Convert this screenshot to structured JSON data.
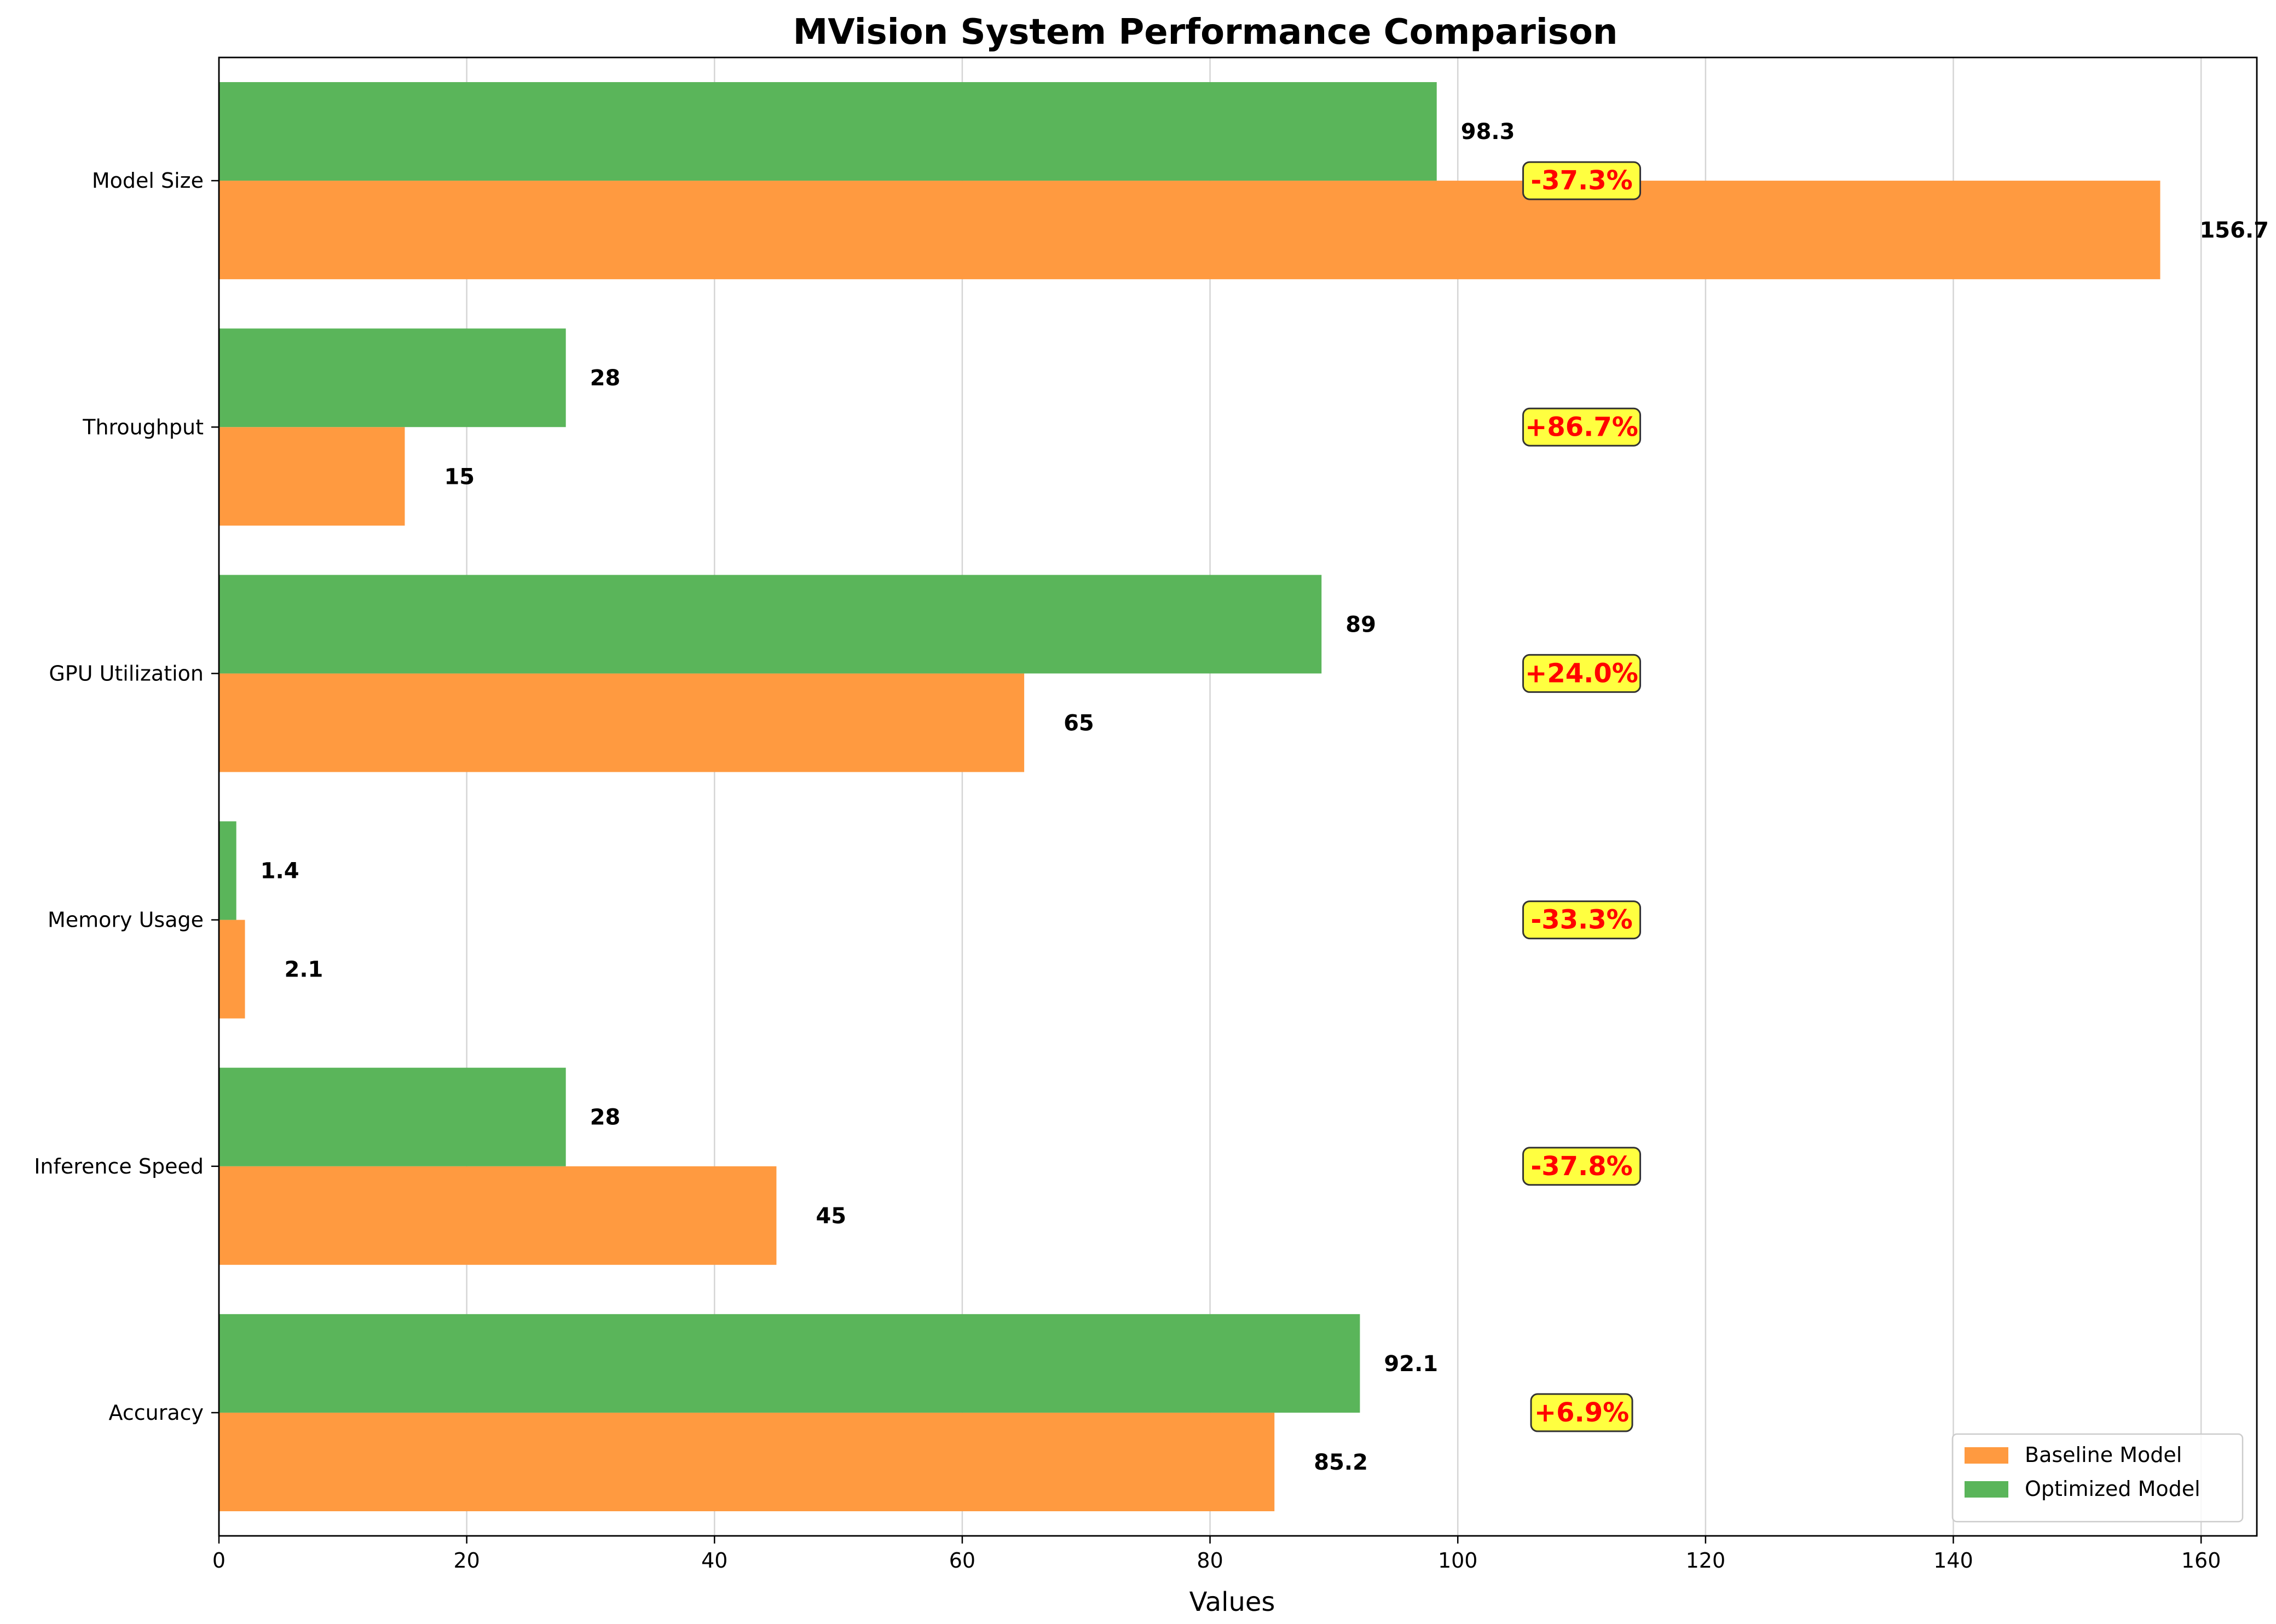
{
  "chart_data": {
    "type": "bar",
    "orientation": "horizontal",
    "title": "MVision System Performance Comparison",
    "xlabel": "Values",
    "ylabel": "",
    "xlim": [
      0,
      164.5
    ],
    "xticks": [
      0,
      20,
      40,
      60,
      80,
      100,
      120,
      140,
      160
    ],
    "grid": "x",
    "legend_position": "bottom-right",
    "categories": [
      "Accuracy",
      "Inference Speed",
      "Memory Usage",
      "GPU Utilization",
      "Throughput",
      "Model Size"
    ],
    "series": [
      {
        "name": "Baseline Model",
        "color": "#ff9a40",
        "values": [
          85.2,
          45,
          2.1,
          65,
          15,
          156.7
        ],
        "labels": [
          "85.2",
          "45",
          "2.1",
          "65",
          "15",
          "156.7"
        ]
      },
      {
        "name": "Optimized Model",
        "color": "#5ab55a",
        "values": [
          92.1,
          28,
          1.4,
          89,
          28,
          98.3
        ],
        "labels": [
          "92.1",
          "28",
          "1.4",
          "89",
          "28",
          "98.3"
        ]
      }
    ],
    "annotations": {
      "values": [
        "+6.9%",
        "-37.8%",
        "-33.3%",
        "+24.0%",
        "+86.7%",
        "-37.3%"
      ],
      "x_position": 110,
      "text_color": "#ff0000",
      "box_color": "#ffff40"
    }
  }
}
